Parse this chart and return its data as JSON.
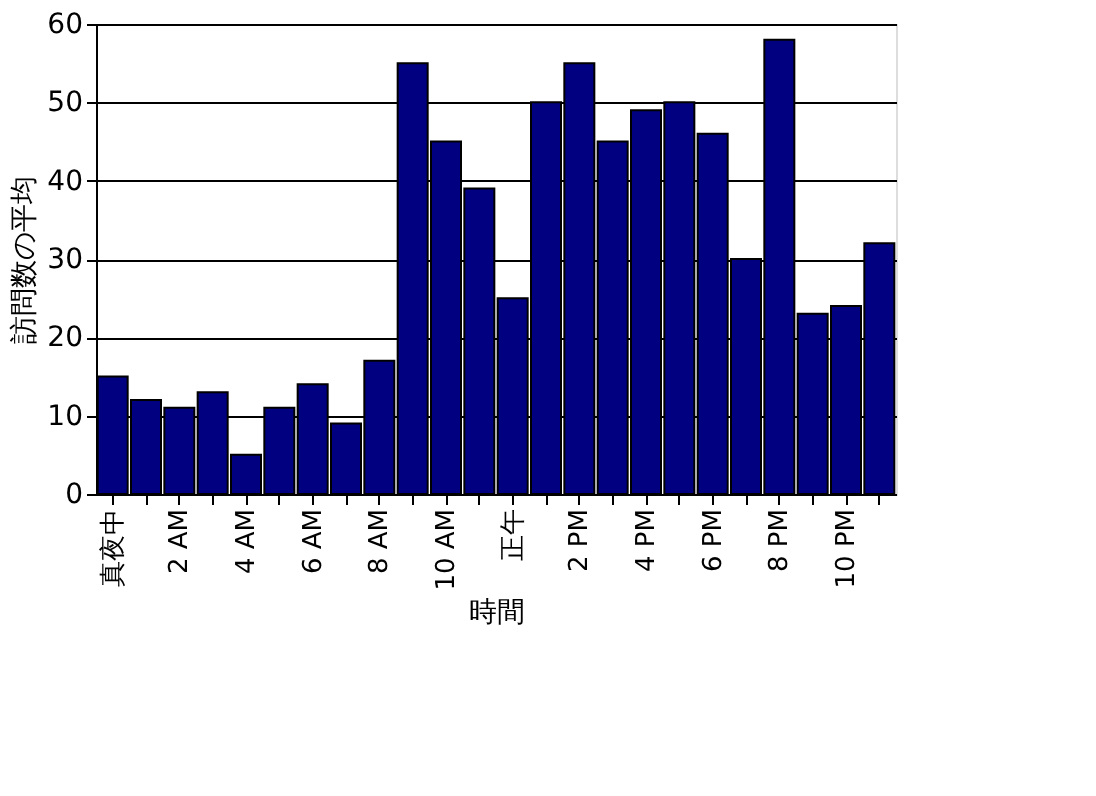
{
  "chart_data": {
    "type": "bar",
    "xlabel": "時間",
    "ylabel": "訪問数の平均",
    "categories": [
      "真夜中",
      null,
      "2 AM",
      null,
      "4 AM",
      null,
      "6 AM",
      null,
      "8 AM",
      null,
      "10 AM",
      null,
      "正午",
      null,
      "2 PM",
      null,
      "4 PM",
      null,
      "6 PM",
      null,
      "8 PM",
      null,
      "10 PM",
      null
    ],
    "values": [
      15,
      12,
      11,
      13,
      5,
      11,
      14,
      9,
      17,
      55,
      45,
      39,
      25,
      50,
      55,
      45,
      49,
      50,
      46,
      30,
      58,
      23,
      24,
      32
    ],
    "color": "#000080",
    "ylim": [
      0,
      60
    ],
    "yticks": [
      0,
      10,
      20,
      30,
      40,
      50,
      60
    ],
    "grid": "y"
  }
}
